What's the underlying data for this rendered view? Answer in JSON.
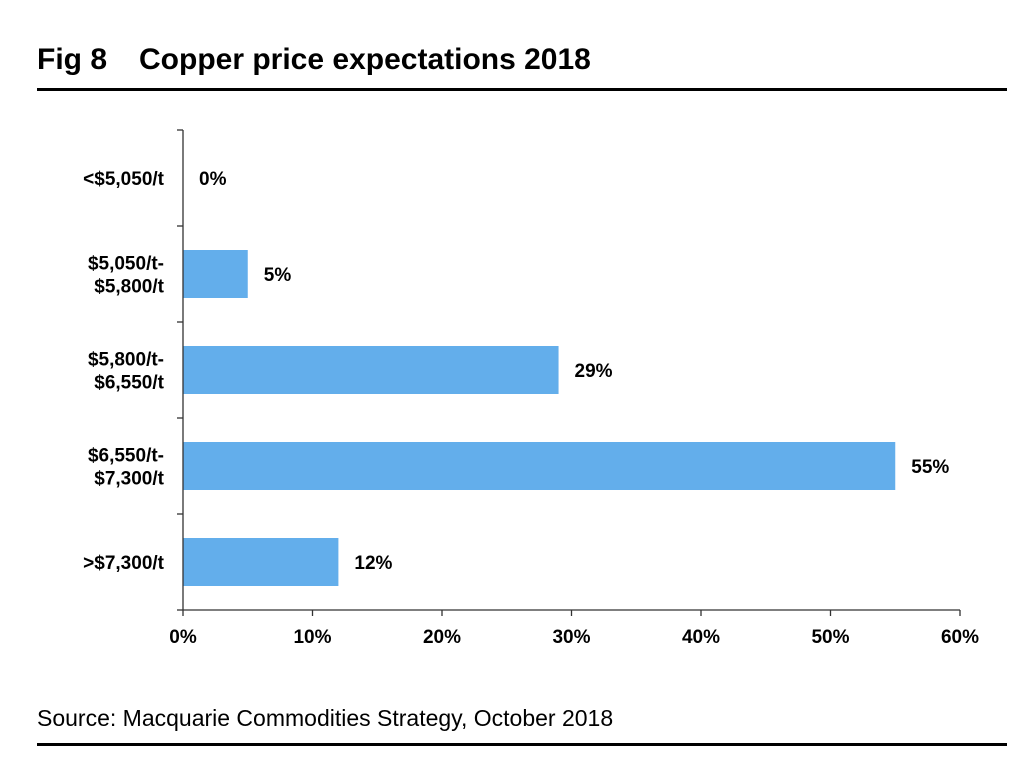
{
  "figure": {
    "number": "Fig 8",
    "title": "Copper price expectations 2018"
  },
  "source": "Source: Macquarie Commodities Strategy, October 2018",
  "colors": {
    "bar": "#63aeeb",
    "axis": "#333333",
    "text": "#000000"
  },
  "chart_data": {
    "type": "bar",
    "orientation": "horizontal",
    "categories": [
      "<$5,050/t",
      "$5,050/t-\n$5,800/t",
      "$5,800/t-\n$6,550/t",
      "$6,550/t-\n$7,300/t",
      ">$7,300/t"
    ],
    "values": [
      0,
      5,
      29,
      55,
      12
    ],
    "data_labels": [
      "0%",
      "5%",
      "29%",
      "55%",
      "12%"
    ],
    "xlim": [
      0,
      60
    ],
    "xticks": [
      0,
      10,
      20,
      30,
      40,
      50,
      60
    ],
    "xtick_labels": [
      "0%",
      "10%",
      "20%",
      "30%",
      "40%",
      "50%",
      "60%"
    ],
    "xlabel": "",
    "ylabel": "",
    "grid": false,
    "legend": "none"
  }
}
